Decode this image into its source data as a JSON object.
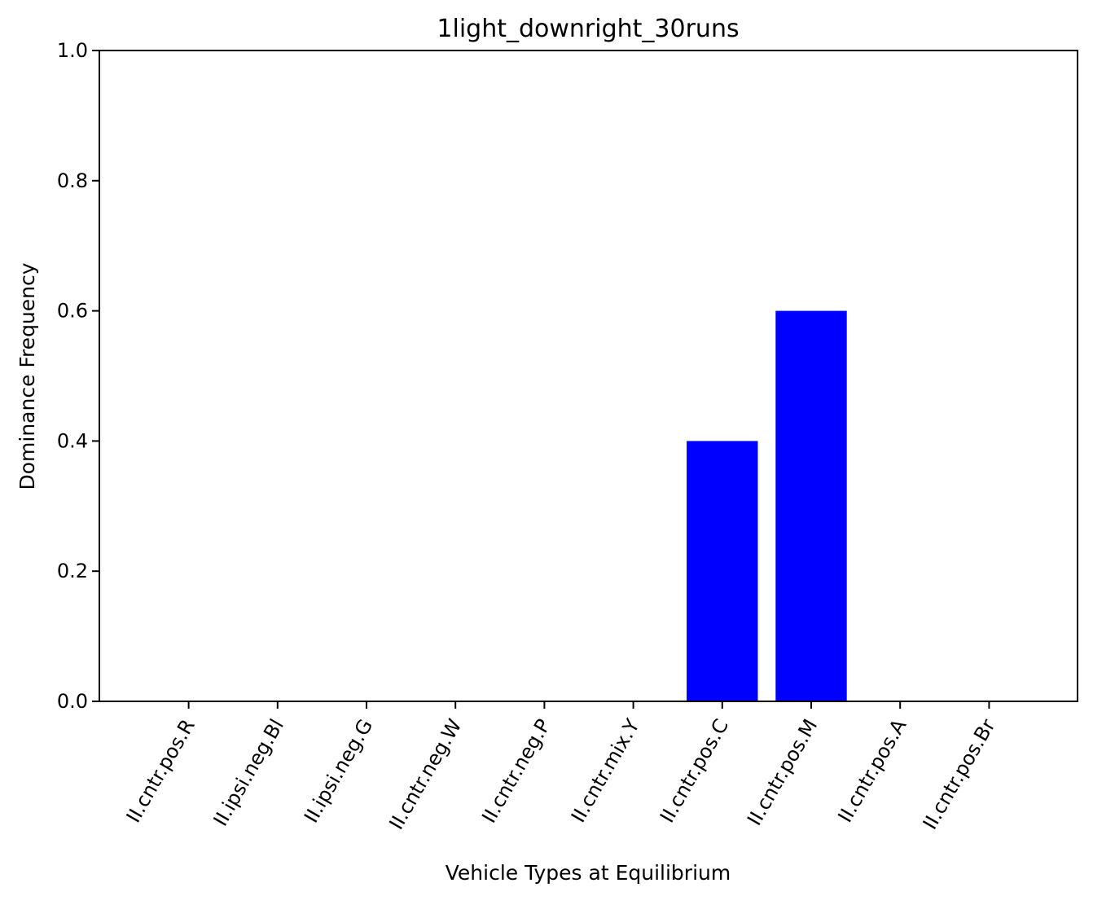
{
  "chart_data": {
    "type": "bar",
    "title": "1light_downright_30runs",
    "xlabel": "Vehicle Types at Equilibrium",
    "ylabel": "Dominance Frequency",
    "categories": [
      "II.cntr.pos.R",
      "II.ipsi.neg.Bl",
      "II.ipsi.neg.G",
      "II.cntr.neg.W",
      "II.cntr.neg.P",
      "II.cntr.mix.Y",
      "II.cntr.pos.C",
      "II.cntr.pos.M",
      "II.cntr.pos.A",
      "II.cntr.pos.Br"
    ],
    "values": [
      0.0,
      0.0,
      0.0,
      0.0,
      0.0,
      0.0,
      0.4,
      0.6,
      0.0,
      0.0
    ],
    "ylim": [
      0,
      1
    ],
    "yticks": [
      "0.0",
      "0.2",
      "0.4",
      "0.6",
      "0.8",
      "1.0"
    ],
    "bar_color": "#0000ff",
    "grid": false,
    "legend": "none"
  }
}
